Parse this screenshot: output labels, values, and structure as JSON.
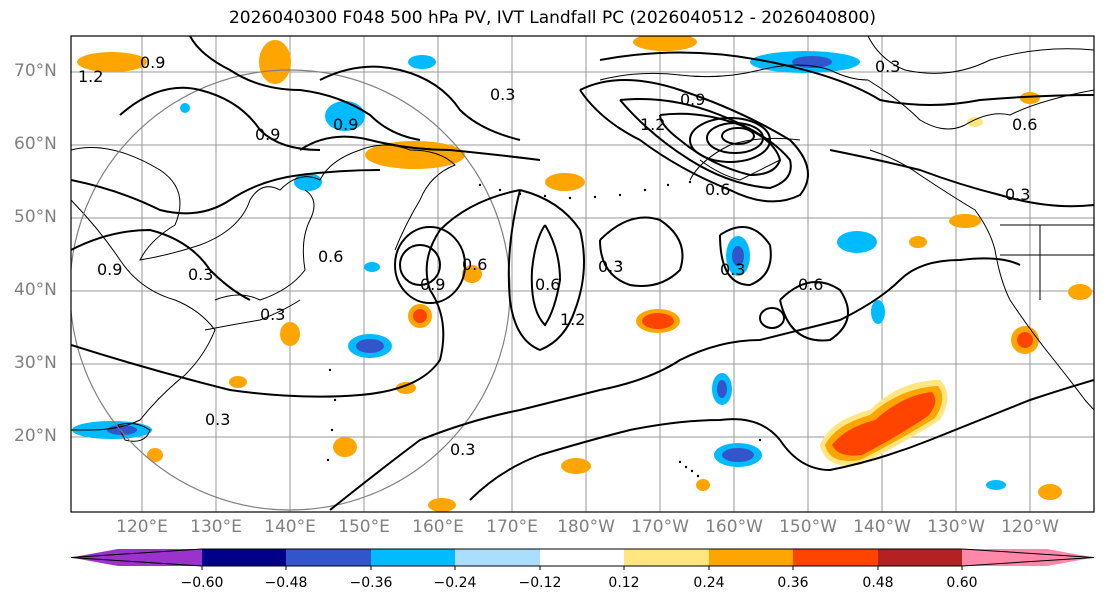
{
  "title": "2026040300 F048 500 hPa PV, IVT Landfall PC (2026040512 - 2026040800)",
  "lat_labels": [
    "70°N",
    "60°N",
    "50°N",
    "40°N",
    "30°N",
    "20°N"
  ],
  "lon_labels": [
    "120°E",
    "130°E",
    "140°E",
    "150°E",
    "160°E",
    "170°E",
    "180°W",
    "170°W",
    "160°W",
    "150°W",
    "140°W",
    "130°W",
    "120°W"
  ],
  "contour_labels": [
    "0.3",
    "0.6",
    "0.9",
    "1.2"
  ],
  "colorbar": {
    "ticks": [
      "−0.60",
      "−0.48",
      "−0.36",
      "−0.24",
      "−0.12",
      "0.12",
      "0.24",
      "0.36",
      "0.48",
      "0.60"
    ],
    "colors": [
      "#9933cc",
      "#000088",
      "#3355cc",
      "#00bbff",
      "#aaddff",
      "#ffffff",
      "#ffe680",
      "#ffa500",
      "#ff4400",
      "#b22222",
      "#ff88aa"
    ]
  },
  "colors": {
    "grid": "#999999",
    "coast": "#000000",
    "contour": "#000000",
    "circle": "#808080"
  }
}
